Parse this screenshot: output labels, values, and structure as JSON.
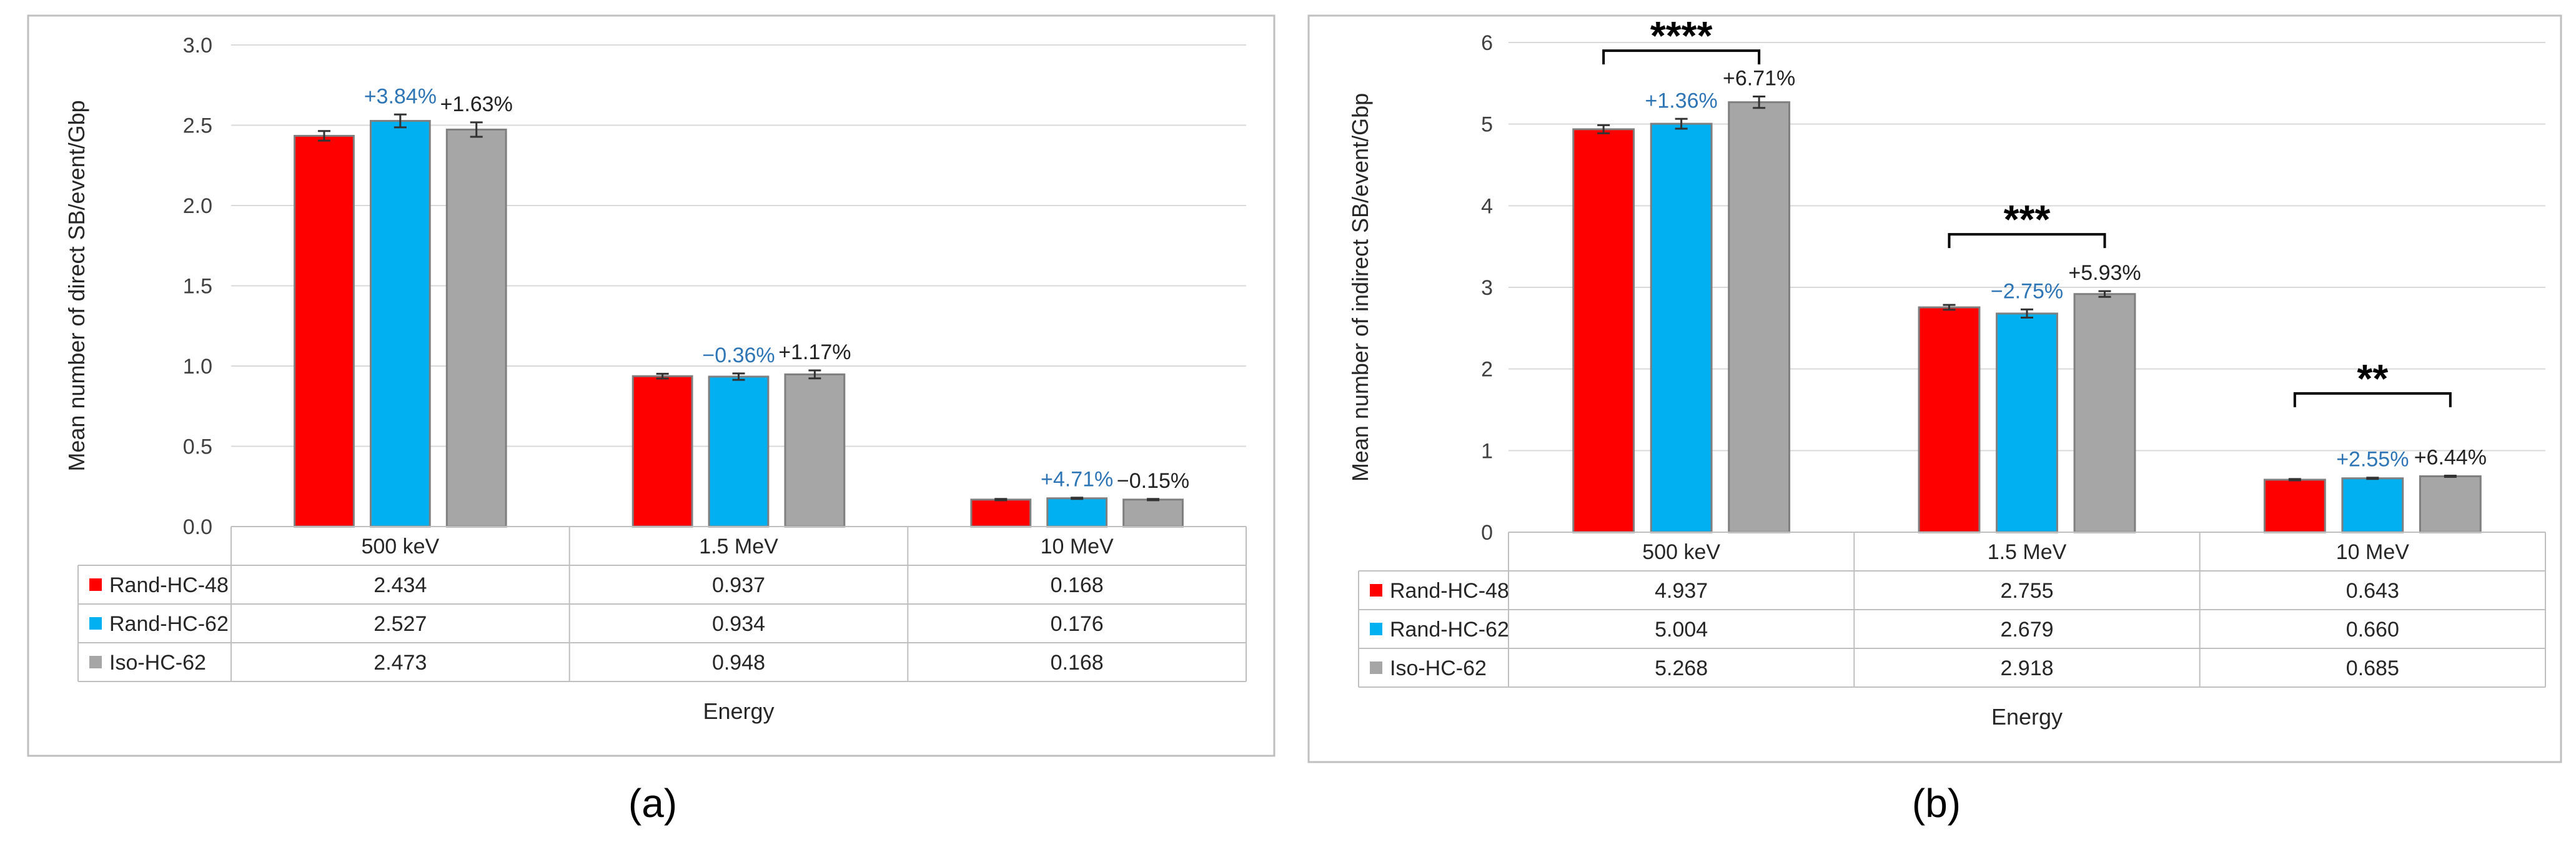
{
  "colors": {
    "rand_hc_48": "#ff0000",
    "rand_hc_62": "#00b0f0",
    "iso_hc_62": "#a6a6a6",
    "pct_blue": "#2e75b6",
    "pct_black": "#222222",
    "grid": "#d9d9d9",
    "frame": "#bfbfbf"
  },
  "chart_data": [
    {
      "id": "a",
      "type": "bar",
      "panel_label": "(a)",
      "title": "",
      "ylabel": "Mean number of direct SB/event/Gbp",
      "xlabel": "Energy",
      "ylim": [
        0,
        3.0
      ],
      "yticks": [
        "0.0",
        "0.5",
        "1.0",
        "1.5",
        "2.0",
        "2.5",
        "3.0"
      ],
      "tick_step": 0.5,
      "categories": [
        "500 keV",
        "1.5 MeV",
        "10 MeV"
      ],
      "series": [
        {
          "name": "Rand-HC-48",
          "color_key": "rand_hc_48",
          "values": [
            2.434,
            0.937,
            0.168
          ],
          "labels": [
            "2.434",
            "0.937",
            "0.168"
          ],
          "errors": [
            0.03,
            0.015,
            0.004
          ]
        },
        {
          "name": "Rand-HC-62",
          "color_key": "rand_hc_62",
          "values": [
            2.527,
            0.934,
            0.176
          ],
          "labels": [
            "2.527",
            "0.934",
            "0.176"
          ],
          "errors": [
            0.04,
            0.02,
            0.004
          ]
        },
        {
          "name": "Iso-HC-62",
          "color_key": "iso_hc_62",
          "values": [
            2.473,
            0.948,
            0.168
          ],
          "labels": [
            "2.473",
            "0.948",
            "0.168"
          ],
          "errors": [
            0.045,
            0.025,
            0.004
          ]
        }
      ],
      "annotations": [
        {
          "category": 0,
          "series": 1,
          "text": "+3.84%",
          "color_key": "pct_blue"
        },
        {
          "category": 0,
          "series": 2,
          "text": "+1.63%",
          "color_key": "pct_black"
        },
        {
          "category": 1,
          "series": 1,
          "text": "−0.36%",
          "color_key": "pct_blue"
        },
        {
          "category": 1,
          "series": 2,
          "text": "+1.17%",
          "color_key": "pct_black"
        },
        {
          "category": 2,
          "series": 1,
          "text": "+4.71%",
          "color_key": "pct_blue"
        },
        {
          "category": 2,
          "series": 2,
          "text": "−0.15%",
          "color_key": "pct_black"
        }
      ],
      "significance": []
    },
    {
      "id": "b",
      "type": "bar",
      "panel_label": "(b)",
      "title": "",
      "ylabel": "Mean number of indirect SB/event/Gbp",
      "xlabel": "Energy",
      "ylim": [
        0,
        6
      ],
      "yticks": [
        "0",
        "1",
        "2",
        "3",
        "4",
        "5",
        "6"
      ],
      "tick_step": 1,
      "categories": [
        "500 keV",
        "1.5 MeV",
        "10 MeV"
      ],
      "series": [
        {
          "name": "Rand-HC-48",
          "color_key": "rand_hc_48",
          "values": [
            4.937,
            2.755,
            0.643
          ],
          "labels": [
            "4.937",
            "2.755",
            "0.643"
          ],
          "errors": [
            0.05,
            0.03,
            0.008
          ]
        },
        {
          "name": "Rand-HC-62",
          "color_key": "rand_hc_62",
          "values": [
            5.004,
            2.679,
            0.66
          ],
          "labels": [
            "5.004",
            "2.679",
            "0.660"
          ],
          "errors": [
            0.06,
            0.05,
            0.008
          ]
        },
        {
          "name": "Iso-HC-62",
          "color_key": "iso_hc_62",
          "values": [
            5.268,
            2.918,
            0.685
          ],
          "labels": [
            "5.268",
            "2.918",
            "0.685"
          ],
          "errors": [
            0.07,
            0.035,
            0.008
          ]
        }
      ],
      "annotations": [
        {
          "category": 0,
          "series": 1,
          "text": "+1.36%",
          "color_key": "pct_blue"
        },
        {
          "category": 0,
          "series": 2,
          "text": "+6.71%",
          "color_key": "pct_black"
        },
        {
          "category": 1,
          "series": 1,
          "text": "−2.75%",
          "color_key": "pct_blue"
        },
        {
          "category": 1,
          "series": 2,
          "text": "+5.93%",
          "color_key": "pct_black"
        },
        {
          "category": 2,
          "series": 1,
          "text": "+2.55%",
          "color_key": "pct_blue"
        },
        {
          "category": 2,
          "series": 2,
          "text": "+6.44%",
          "color_key": "pct_black"
        }
      ],
      "significance": [
        {
          "category": 0,
          "text": "****",
          "level_value": 5.9
        },
        {
          "category": 1,
          "text": "***",
          "level_value": 3.65
        },
        {
          "category": 2,
          "text": "**",
          "level_value": 1.7
        }
      ]
    }
  ]
}
